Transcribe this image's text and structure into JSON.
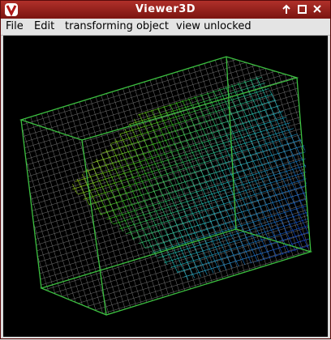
{
  "window": {
    "title": "Viewer3D"
  },
  "menu": [
    "File",
    "Edit",
    "transforming object",
    "view unlocked"
  ]
}
